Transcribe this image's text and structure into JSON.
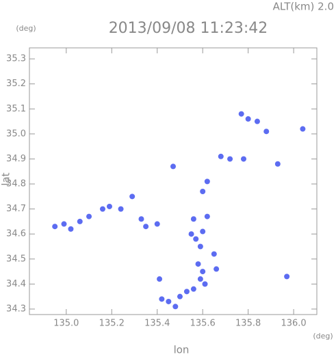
{
  "chart_data": {
    "type": "scatter",
    "title": "2013/09/08 11:23:42",
    "subtitle": "ALT(km)  2.0",
    "y_unit": "(deg)",
    "x_unit": "(deg)",
    "xlabel": "lon",
    "ylabel": "lat",
    "color": "#4a5cf0",
    "xlim": [
      134.838,
      136.102
    ],
    "ylim": [
      34.278,
      35.344
    ],
    "xticks": [
      {
        "value": 135.0,
        "label": "135.0"
      },
      135.2,
      135.4,
      135.6,
      135.8,
      {
        "value": 136.0,
        "label": "136.0"
      }
    ],
    "yticks": [
      34.3,
      34.4,
      34.5,
      34.6,
      34.7,
      34.8,
      34.9,
      {
        "value": 35.0,
        "label": "35.0"
      },
      35.1,
      35.2,
      35.3
    ],
    "x": [
      134.95,
      134.99,
      135.02,
      135.06,
      135.1,
      135.16,
      135.19,
      135.24,
      135.29,
      135.33,
      135.35,
      135.41,
      135.42,
      135.45,
      135.48,
      135.5,
      135.53,
      135.56,
      135.59,
      135.6,
      135.61,
      135.58,
      135.59,
      135.57,
      135.6,
      135.62,
      135.65,
      135.66,
      135.56,
      135.55,
      135.68,
      135.72,
      135.62,
      135.6,
      135.47,
      135.84,
      135.88,
      135.78,
      135.97,
      135.77,
      135.8,
      136.04,
      135.93,
      135.4
    ],
    "y": [
      34.63,
      34.64,
      34.62,
      34.65,
      34.67,
      34.7,
      34.71,
      34.7,
      34.75,
      34.66,
      34.63,
      34.42,
      34.34,
      34.33,
      34.31,
      34.35,
      34.37,
      34.38,
      34.42,
      34.45,
      34.4,
      34.48,
      34.55,
      34.58,
      34.61,
      34.67,
      34.52,
      34.46,
      34.66,
      34.6,
      34.91,
      34.9,
      34.81,
      34.77,
      34.87,
      35.05,
      35.01,
      34.9,
      34.43,
      35.08,
      35.06,
      35.02,
      34.88,
      34.64
    ]
  }
}
